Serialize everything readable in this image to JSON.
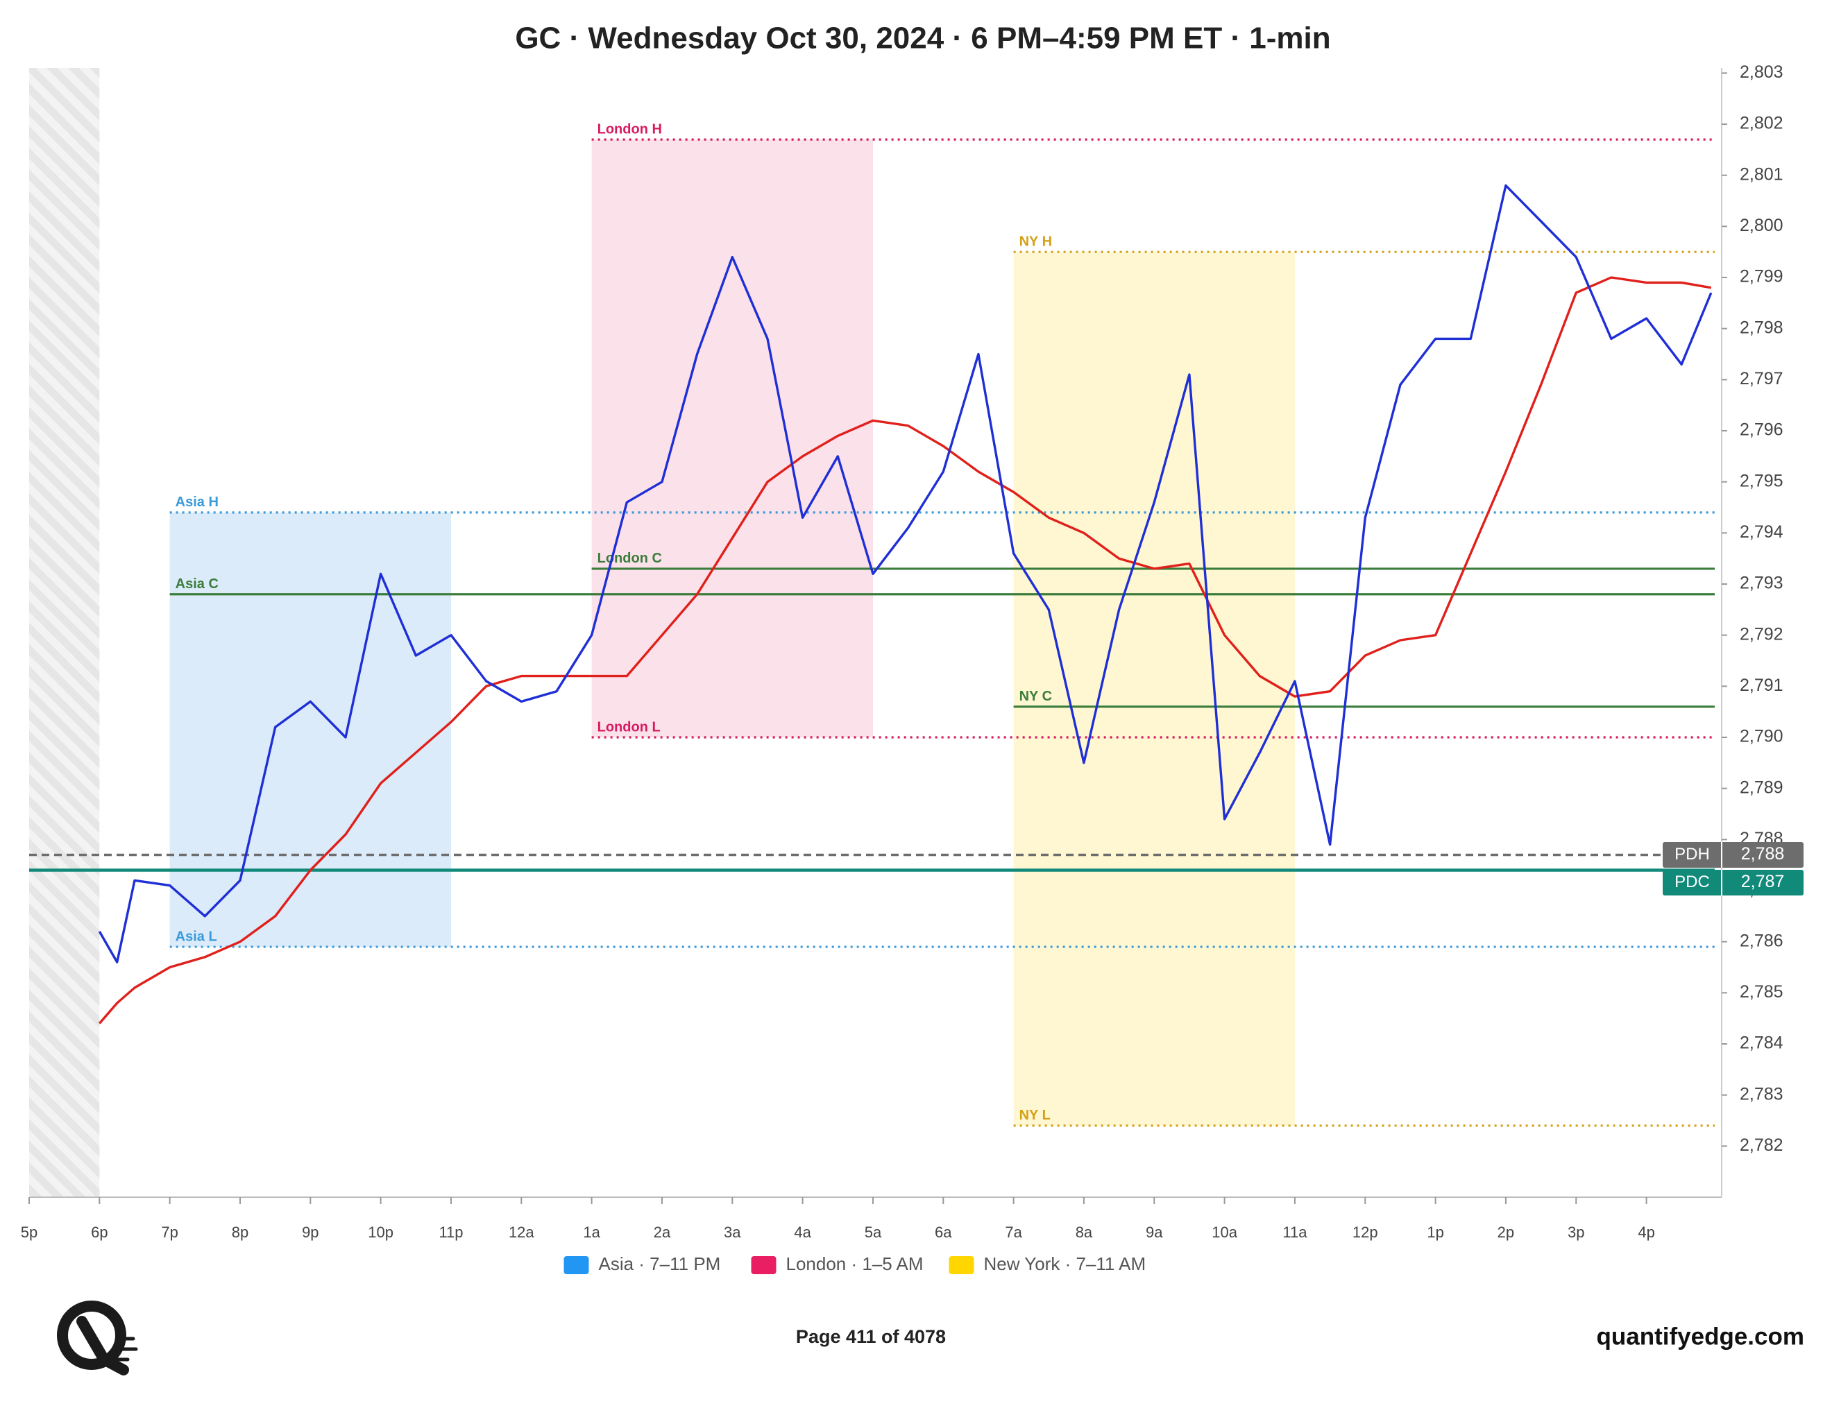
{
  "chart_data": {
    "type": "line",
    "title": "GC · Wednesday Oct 30, 2024 · 6 PM–4:59 PM ET · 1-min",
    "x": [
      1,
      1.25,
      1.5,
      2,
      2.5,
      3,
      3.5,
      4,
      4.5,
      5,
      5.5,
      6,
      6.5,
      7,
      7.5,
      8,
      8.5,
      9,
      9.5,
      10,
      10.5,
      11,
      11.5,
      12,
      12.5,
      13,
      13.5,
      14,
      14.5,
      15,
      15.5,
      16,
      16.5,
      17,
      17.5,
      18,
      18.5,
      19,
      19.5,
      20,
      20.5,
      21,
      21.5,
      22,
      22.5,
      23,
      23.5,
      23.92
    ],
    "series": [
      {
        "color": "#e0201b",
        "values": [
          2784.4,
          2784.8,
          2785.1,
          2785.5,
          2785.7,
          2786.0,
          2786.5,
          2787.4,
          2788.1,
          2789.1,
          2789.7,
          2790.3,
          2791.0,
          2791.2,
          2791.2,
          2791.2,
          2791.2,
          2792.0,
          2792.8,
          2793.9,
          2795.0,
          2795.5,
          2795.9,
          2796.2,
          2796.1,
          2795.7,
          2795.2,
          2794.8,
          2794.3,
          2794.0,
          2793.5,
          2793.3,
          2793.4,
          2792.0,
          2791.2,
          2790.8,
          2790.9,
          2791.6,
          2791.9,
          2792.0,
          2793.6,
          2795.2,
          2796.9,
          2798.7,
          2799.0,
          2798.9,
          2798.9,
          2798.8
        ]
      },
      {
        "color": "#1f2fd6",
        "values": [
          2786.2,
          2785.6,
          2787.2,
          2787.1,
          2786.5,
          2787.2,
          2790.2,
          2790.7,
          2790.0,
          2793.2,
          2791.6,
          2792.0,
          2791.1,
          2790.7,
          2790.9,
          2792.0,
          2794.6,
          2795.0,
          2797.5,
          2799.4,
          2797.8,
          2794.3,
          2795.5,
          2793.2,
          2794.1,
          2795.2,
          2797.5,
          2793.6,
          2792.5,
          2789.5,
          2792.5,
          2794.6,
          2797.1,
          2788.4,
          2789.7,
          2791.1,
          2787.9,
          2794.3,
          2796.9,
          2797.8,
          2797.8,
          2800.8,
          2800.1,
          2799.4,
          2797.8,
          2798.2,
          2797.3,
          2798.7
        ]
      }
    ],
    "sessions": [
      {
        "legend": "Asia · 7–11 PM",
        "legend_color": "#2196f3",
        "box_color": "#dcebf9",
        "line_color": "#3a9ad9",
        "start": 2,
        "end": 6,
        "high": 2794.4,
        "close": 2792.8,
        "low": 2785.9,
        "high_label": "Asia H",
        "close_label": "Asia C",
        "low_label": "Asia L"
      },
      {
        "legend": "London · 1–5 AM",
        "legend_color": "#e91e63",
        "box_color": "#fbe1ea",
        "line_color": "#d81b60",
        "start": 8,
        "end": 12,
        "high": 2801.7,
        "close": 2793.3,
        "low": 2790.0,
        "high_label": "London H",
        "close_label": "London C",
        "low_label": "London L"
      },
      {
        "legend": "New York · 7–11 AM",
        "legend_color": "#ffd600",
        "box_color": "#fff7d1",
        "line_color": "#d4a017",
        "start": 14,
        "end": 18,
        "high": 2799.5,
        "close": 2790.6,
        "low": 2782.4,
        "high_label": "NY H",
        "close_label": "NY C",
        "low_label": "NY L"
      }
    ],
    "close_color": "#3b7d3b",
    "reference_lines": {
      "names": [
        "PDH",
        "PDC"
      ],
      "values": [
        2787.7,
        2787.4
      ],
      "value_labels": [
        "2,788",
        "2,787"
      ],
      "colors": [
        "#6d6d6d",
        "#128a7a"
      ]
    },
    "xlim": [
      0,
      24.07
    ],
    "xticks": [
      {
        "value": 0,
        "label": "5p"
      },
      {
        "value": 1,
        "label": "6p"
      },
      {
        "value": 2,
        "label": "7p"
      },
      {
        "value": 3,
        "label": "8p"
      },
      {
        "value": 4,
        "label": "9p"
      },
      {
        "value": 5,
        "label": "10p"
      },
      {
        "value": 6,
        "label": "11p"
      },
      {
        "value": 7,
        "label": "12a"
      },
      {
        "value": 8,
        "label": "1a"
      },
      {
        "value": 9,
        "label": "2a"
      },
      {
        "value": 10,
        "label": "3a"
      },
      {
        "value": 11,
        "label": "4a"
      },
      {
        "value": 12,
        "label": "5a"
      },
      {
        "value": 13,
        "label": "6a"
      },
      {
        "value": 14,
        "label": "7a"
      },
      {
        "value": 15,
        "label": "8a"
      },
      {
        "value": 16,
        "label": "9a"
      },
      {
        "value": 17,
        "label": "10a"
      },
      {
        "value": 18,
        "label": "11a"
      },
      {
        "value": 19,
        "label": "12p"
      },
      {
        "value": 20,
        "label": "1p"
      },
      {
        "value": 21,
        "label": "2p"
      },
      {
        "value": 22,
        "label": "3p"
      },
      {
        "value": 23,
        "label": "4p"
      }
    ],
    "ylim": [
      2781,
      2803.1
    ],
    "yticks": [
      {
        "value": 2782,
        "label": "2,782"
      },
      {
        "value": 2783,
        "label": "2,783"
      },
      {
        "value": 2784,
        "label": "2,784"
      },
      {
        "value": 2785,
        "label": "2,785"
      },
      {
        "value": 2786,
        "label": "2,786"
      },
      {
        "value": 2787,
        "label": "2,787"
      },
      {
        "value": 2788,
        "label": "2,788"
      },
      {
        "value": 2789,
        "label": "2,789"
      },
      {
        "value": 2790,
        "label": "2,790"
      },
      {
        "value": 2791,
        "label": "2,791"
      },
      {
        "value": 2792,
        "label": "2,792"
      },
      {
        "value": 2793,
        "label": "2,793"
      },
      {
        "value": 2794,
        "label": "2,794"
      },
      {
        "value": 2795,
        "label": "2,795"
      },
      {
        "value": 2796,
        "label": "2,796"
      },
      {
        "value": 2797,
        "label": "2,797"
      },
      {
        "value": 2798,
        "label": "2,798"
      },
      {
        "value": 2799,
        "label": "2,799"
      },
      {
        "value": 2800,
        "label": "2,800"
      },
      {
        "value": 2801,
        "label": "2,801"
      },
      {
        "value": 2802,
        "label": "2,802"
      },
      {
        "value": 2803,
        "label": "2,803"
      }
    ],
    "footer": {
      "page": "Page 411 of 4078",
      "site": "quantifyedge.com"
    }
  }
}
